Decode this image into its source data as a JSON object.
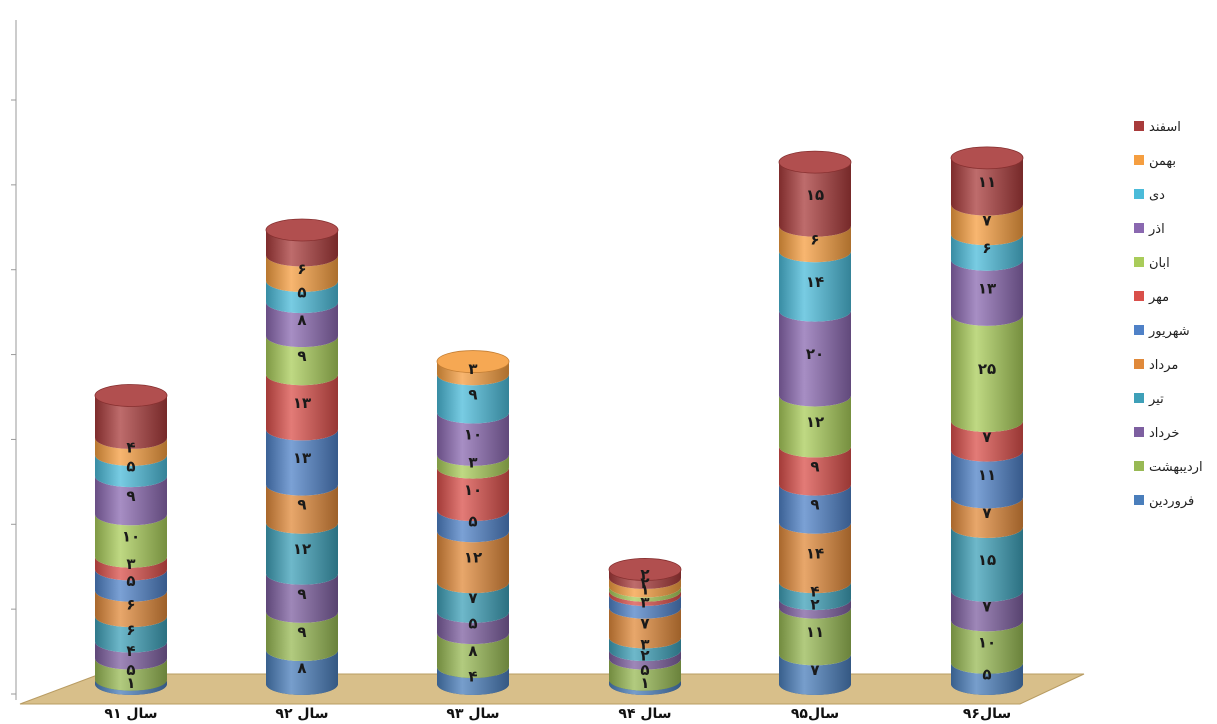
{
  "chart_data": {
    "type": "bar",
    "stacked": true,
    "style": "3d-cylinder",
    "categories": [
      "سال ۹۱",
      "سال ۹۲",
      "سال ۹۳",
      "سال ۹۴",
      "سال۹۵",
      "سال۹۶"
    ],
    "series": [
      {
        "name": "فروردین",
        "color": "#4a7ebb",
        "values": [
          1,
          8,
          4,
          1,
          7,
          5
        ]
      },
      {
        "name": "اردیبهشت",
        "color": "#98b954",
        "values": [
          5,
          9,
          8,
          5,
          11,
          10
        ]
      },
      {
        "name": "خرداد",
        "color": "#7d5fa0",
        "values": [
          4,
          9,
          5,
          2,
          2,
          7
        ]
      },
      {
        "name": "تیر",
        "color": "#3ea0b8",
        "values": [
          6,
          12,
          7,
          3,
          4,
          15
        ]
      },
      {
        "name": "مرداد",
        "color": "#e0893a",
        "values": [
          6,
          9,
          12,
          7,
          14,
          7
        ]
      },
      {
        "name": "شهریور",
        "color": "#4f81c7",
        "values": [
          5,
          13,
          5,
          3,
          9,
          11
        ]
      },
      {
        "name": "مهر",
        "color": "#d94f4a",
        "values": [
          3,
          13,
          10,
          1,
          9,
          7
        ]
      },
      {
        "name": "ابان",
        "color": "#a9cc5a",
        "values": [
          10,
          9,
          3,
          1,
          12,
          25
        ]
      },
      {
        "name": "اذر",
        "color": "#8a68b0",
        "values": [
          9,
          8,
          10,
          0,
          20,
          13
        ]
      },
      {
        "name": "دی",
        "color": "#4bbbd9",
        "values": [
          5,
          5,
          9,
          0,
          14,
          6
        ]
      },
      {
        "name": "بهمن",
        "color": "#f59e40",
        "values": [
          4,
          6,
          3,
          2,
          6,
          7
        ]
      },
      {
        "name": "اسفند",
        "color": "#a83b3b",
        "values": [
          10,
          6,
          0,
          2,
          15,
          11
        ]
      }
    ],
    "segment_labels": [
      [
        "۱",
        "۵",
        "۴",
        "۶",
        "۶",
        "۵",
        "۳",
        "۱۰",
        "۹",
        "۵",
        "۴",
        ""
      ],
      [
        "۸",
        "۹",
        "۹",
        "۱۲",
        "۹",
        "۱۳",
        "۱۳",
        "۹",
        "۸",
        "۵",
        "۶",
        ""
      ],
      [
        "۴",
        "۸",
        "۵",
        "۷",
        "۱۲",
        "۵",
        "۱۰",
        "۳",
        "۱۰",
        "۹",
        "۳",
        ""
      ],
      [
        "۱",
        "۵",
        "۲",
        "۳",
        "۷",
        "۳",
        "",
        "۱",
        "",
        "",
        "۲",
        "۲"
      ],
      [
        "۷",
        "۱۱",
        "۲",
        "۴",
        "۱۴",
        "۹",
        "۹",
        "۱۲",
        "۲۰",
        "۱۴",
        "۶",
        "۱۵"
      ],
      [
        "۵",
        "۱۰",
        "۷",
        "۱۵",
        "۷",
        "۱۱",
        "۷",
        "۲۵",
        "۱۳",
        "۶",
        "۷",
        "۱۱"
      ]
    ],
    "ylim": [
      0,
      140
    ],
    "gridlines": false,
    "legend_position": "right",
    "floor_color": "#d8bf8a"
  }
}
